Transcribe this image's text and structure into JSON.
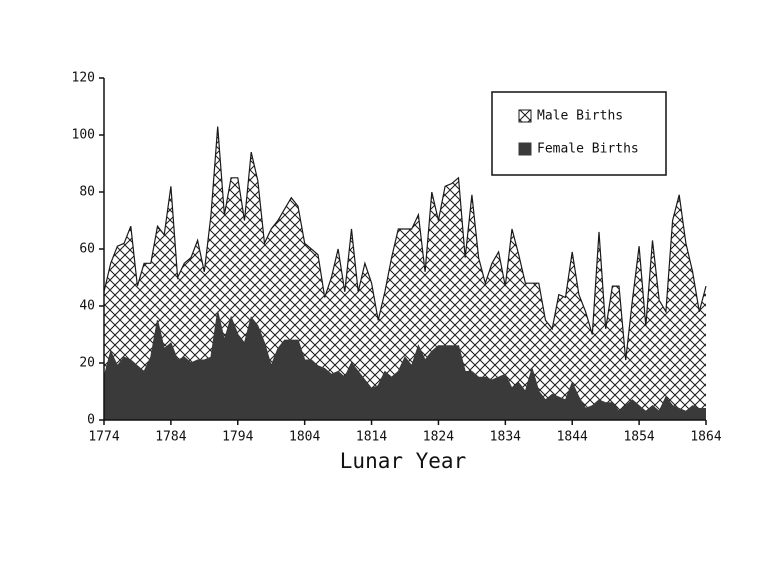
{
  "chart_data": {
    "type": "area",
    "x_label": "Lunar Year",
    "x": [
      1774,
      1775,
      1776,
      1777,
      1778,
      1779,
      1780,
      1781,
      1782,
      1783,
      1784,
      1785,
      1786,
      1787,
      1788,
      1789,
      1790,
      1791,
      1792,
      1793,
      1794,
      1795,
      1796,
      1797,
      1798,
      1799,
      1800,
      1801,
      1802,
      1803,
      1804,
      1805,
      1806,
      1807,
      1808,
      1809,
      1810,
      1811,
      1812,
      1813,
      1814,
      1815,
      1816,
      1817,
      1818,
      1819,
      1820,
      1821,
      1822,
      1823,
      1824,
      1825,
      1826,
      1827,
      1828,
      1829,
      1830,
      1831,
      1832,
      1833,
      1834,
      1835,
      1836,
      1837,
      1838,
      1839,
      1840,
      1841,
      1842,
      1843,
      1844,
      1845,
      1846,
      1847,
      1848,
      1849,
      1850,
      1851,
      1852,
      1853,
      1854,
      1855,
      1856,
      1857,
      1858,
      1859,
      1860,
      1861,
      1862,
      1863,
      1864
    ],
    "series": [
      {
        "name": "Male Births",
        "color": "#1a1a1a",
        "pattern": "crosshatch",
        "values": [
          45,
          55,
          61,
          62,
          68,
          47,
          55,
          55,
          68,
          65,
          82,
          50,
          55,
          57,
          63,
          52,
          72,
          103,
          72,
          85,
          85,
          70,
          94,
          84,
          62,
          67,
          70,
          74,
          78,
          75,
          62,
          60,
          58,
          43,
          50,
          60,
          45,
          67,
          45,
          55,
          48,
          35,
          45,
          57,
          67,
          67,
          67,
          72,
          52,
          80,
          70,
          82,
          83,
          85,
          57,
          79,
          57,
          48,
          55,
          59,
          47,
          67,
          58,
          48,
          48,
          48,
          35,
          32,
          44,
          43,
          59,
          44,
          38,
          30,
          66,
          32,
          47,
          47,
          21,
          42,
          61,
          33,
          63,
          42,
          38,
          70,
          79,
          62,
          52,
          38,
          47
        ]
      },
      {
        "name": "Female Births",
        "color": "#3a3a3a",
        "pattern": "solid",
        "values": [
          15,
          24,
          19,
          22,
          21,
          19,
          17,
          22,
          35,
          25,
          27,
          21,
          22,
          20,
          21,
          21,
          22,
          38,
          28,
          36,
          30,
          27,
          36,
          33,
          27,
          19,
          25,
          28,
          28,
          28,
          21,
          21,
          19,
          18,
          16,
          17,
          15,
          20,
          17,
          14,
          11,
          12,
          17,
          15,
          17,
          22,
          19,
          26,
          21,
          24,
          26,
          26,
          26,
          26,
          17,
          17,
          15,
          15,
          14,
          15,
          16,
          11,
          13,
          10,
          18,
          10,
          7,
          9,
          8,
          7,
          13,
          8,
          4,
          5,
          7,
          6,
          6,
          3,
          5,
          7,
          5,
          3,
          5,
          3,
          8,
          5,
          4,
          3,
          5,
          4,
          4
        ]
      }
    ],
    "xlim": [
      1774,
      1864
    ],
    "xticks": [
      1774,
      1784,
      1794,
      1804,
      1814,
      1824,
      1834,
      1844,
      1854,
      1864
    ],
    "ylim": [
      0,
      120
    ],
    "yticks": [
      0,
      20,
      40,
      60,
      80,
      100,
      120
    ],
    "grid": false,
    "legend": "top-right"
  }
}
